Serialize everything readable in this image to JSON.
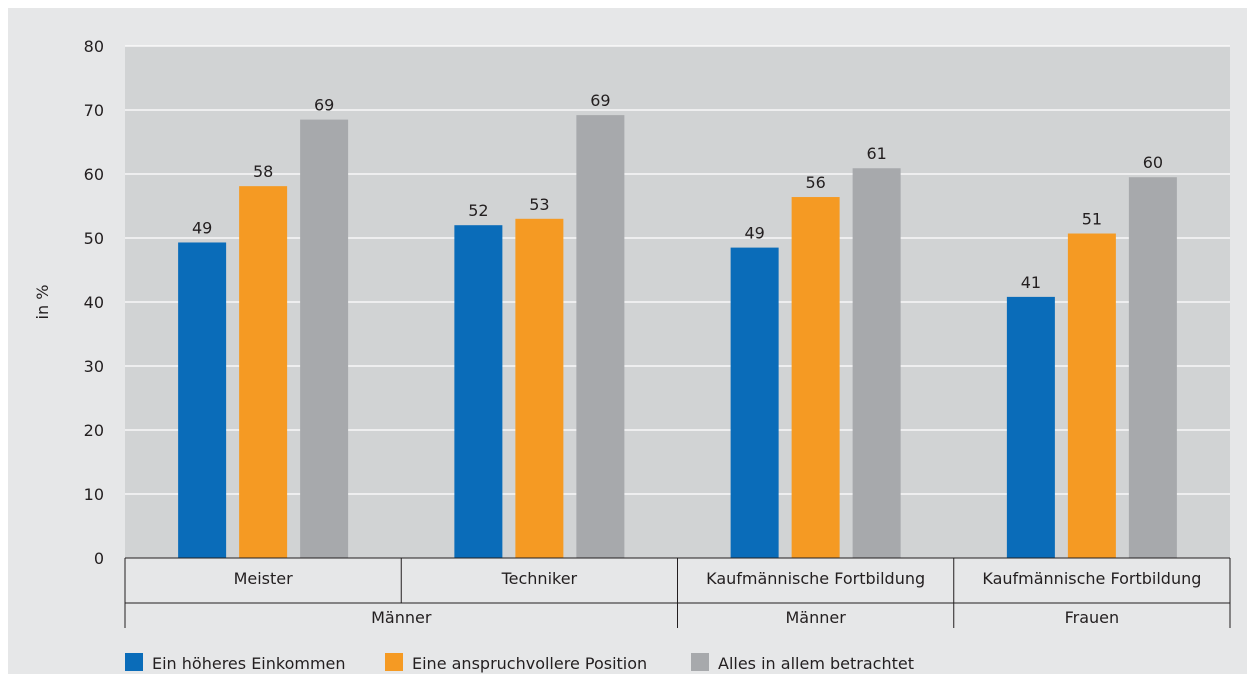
{
  "chart_data": {
    "type": "bar",
    "title": "",
    "ylabel": "in %",
    "xlabel": "",
    "ylim": [
      0,
      80
    ],
    "yticks": [
      0,
      10,
      20,
      30,
      40,
      50,
      60,
      70,
      80
    ],
    "grid": true,
    "legend_position": "bottom-left",
    "categories": [
      "Meister",
      "Techniker",
      "Kaufmännische Fortbildung",
      "Kaufmännische Fortbildung"
    ],
    "groups": [
      {
        "label": "Männer",
        "categories": [
          0,
          1
        ]
      },
      {
        "label": "Männer",
        "categories": [
          2
        ]
      },
      {
        "label": "Frauen",
        "categories": [
          3
        ]
      }
    ],
    "series": [
      {
        "name": "Ein höheres Einkommen",
        "color": "#0a6cb9",
        "values": [
          49.3,
          52.0,
          48.5,
          40.8
        ],
        "labels": [
          "49",
          "52",
          "49",
          "41"
        ]
      },
      {
        "name": "Eine anspruchvollere Position",
        "color": "#f59a23",
        "values": [
          58.1,
          53.0,
          56.4,
          50.7
        ],
        "labels": [
          "58",
          "53",
          "56",
          "51"
        ]
      },
      {
        "name": "Alles in allem betrachtet",
        "color": "#a7a9ac",
        "values": [
          68.5,
          69.2,
          60.9,
          59.5
        ],
        "labels": [
          "69",
          "69",
          "61",
          "60"
        ]
      }
    ]
  }
}
